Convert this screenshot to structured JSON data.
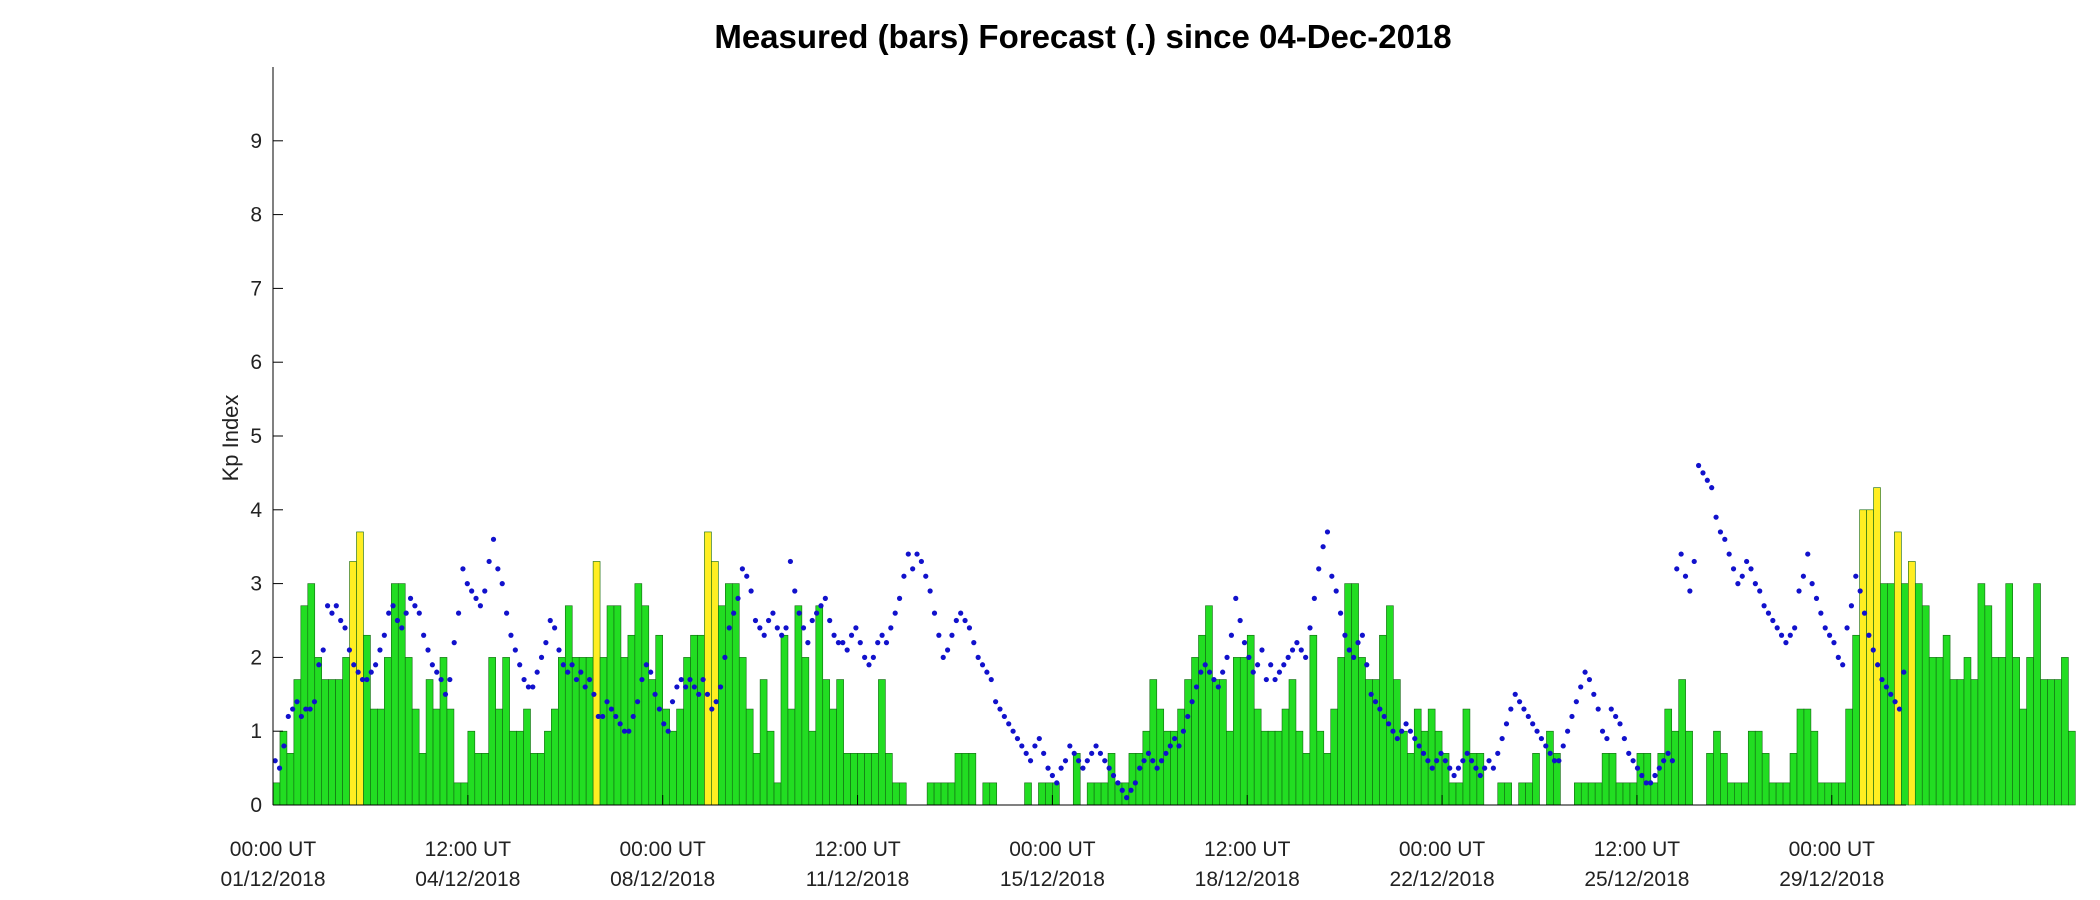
{
  "chart_data": {
    "type": "bar",
    "title": "Measured (bars) Forecast (.) since 04-Dec-2018",
    "ylabel": "Kp Index",
    "xlabel": "",
    "ylim": [
      0,
      10
    ],
    "yticks": [
      0,
      1,
      2,
      3,
      4,
      5,
      6,
      7,
      8,
      9
    ],
    "x_range_hours": [
      0,
      704
    ],
    "x_ticks": [
      {
        "hour": 0,
        "time": "00:00 UT",
        "date": "01/12/2018"
      },
      {
        "hour": 84,
        "time": "12:00 UT",
        "date": "04/12/2018"
      },
      {
        "hour": 168,
        "time": "00:00 UT",
        "date": "08/12/2018"
      },
      {
        "hour": 252,
        "time": "12:00 UT",
        "date": "11/12/2018"
      },
      {
        "hour": 336,
        "time": "00:00 UT",
        "date": "15/12/2018"
      },
      {
        "hour": 420,
        "time": "12:00 UT",
        "date": "18/12/2018"
      },
      {
        "hour": 504,
        "time": "00:00 UT",
        "date": "22/12/2018"
      },
      {
        "hour": 588,
        "time": "12:00 UT",
        "date": "25/12/2018"
      },
      {
        "hour": 672,
        "time": "00:00 UT",
        "date": "29/12/2018"
      }
    ],
    "colors": {
      "bar_low": "#22dd22",
      "bar_high": "#ffee22",
      "bar_edge": "#116611",
      "forecast": "#1111cc",
      "axis": "#000000"
    },
    "measured": [
      0.3,
      1.0,
      0.7,
      1.7,
      2.7,
      3.0,
      2.0,
      1.7,
      1.7,
      1.7,
      2.0,
      3.3,
      3.7,
      2.3,
      1.3,
      1.3,
      2.0,
      3.0,
      3.0,
      2.0,
      1.3,
      0.7,
      1.7,
      1.3,
      2.0,
      1.3,
      0.3,
      0.3,
      1.0,
      0.7,
      0.7,
      2.0,
      1.3,
      2.0,
      1.0,
      1.0,
      1.3,
      0.7,
      0.7,
      1.0,
      1.3,
      2.0,
      2.7,
      2.0,
      2.0,
      2.0,
      3.3,
      2.0,
      2.7,
      2.7,
      2.0,
      2.3,
      3.0,
      2.7,
      1.7,
      2.3,
      1.3,
      1.0,
      1.3,
      2.0,
      2.3,
      2.3,
      3.7,
      3.3,
      2.7,
      3.0,
      3.0,
      2.0,
      1.3,
      0.7,
      1.7,
      1.0,
      0.3,
      2.3,
      1.3,
      2.7,
      2.0,
      1.0,
      2.7,
      1.7,
      1.3,
      1.7,
      0.7,
      0.7,
      0.7,
      0.7,
      0.7,
      1.7,
      0.7,
      0.3,
      0.3,
      0.0,
      0.0,
      0.0,
      0.3,
      0.3,
      0.3,
      0.3,
      0.7,
      0.7,
      0.7,
      0.0,
      0.3,
      0.3,
      0.0,
      0.0,
      0.0,
      0.0,
      0.3,
      0.0,
      0.3,
      0.3,
      0.3,
      0.0,
      0.0,
      0.7,
      0.0,
      0.3,
      0.3,
      0.3,
      0.7,
      0.3,
      0.3,
      0.7,
      0.7,
      1.0,
      1.7,
      1.3,
      1.0,
      1.0,
      1.3,
      1.7,
      2.0,
      2.3,
      2.7,
      1.7,
      1.7,
      1.0,
      2.0,
      2.0,
      2.3,
      1.3,
      1.0,
      1.0,
      1.0,
      1.3,
      1.7,
      1.0,
      0.7,
      2.3,
      1.0,
      0.7,
      1.3,
      2.0,
      3.0,
      3.0,
      2.0,
      1.7,
      1.7,
      2.3,
      2.7,
      1.7,
      1.0,
      0.7,
      1.3,
      1.0,
      1.3,
      1.0,
      0.7,
      0.3,
      0.3,
      1.3,
      0.7,
      0.7,
      0.0,
      0.0,
      0.3,
      0.3,
      0.0,
      0.3,
      0.3,
      0.7,
      0.0,
      1.0,
      0.7,
      0.0,
      0.0,
      0.3,
      0.3,
      0.3,
      0.3,
      0.7,
      0.7,
      0.3,
      0.3,
      0.3,
      0.7,
      0.7,
      0.3,
      0.7,
      1.3,
      1.0,
      1.7,
      1.0,
      0.0,
      0.0,
      0.7,
      1.0,
      0.7,
      0.3,
      0.3,
      0.3,
      1.0,
      1.0,
      0.7,
      0.3,
      0.3,
      0.3,
      0.7,
      1.3,
      1.3,
      1.0,
      0.3,
      0.3,
      0.3,
      0.3,
      1.3,
      2.3,
      4.0,
      4.0,
      4.3,
      3.0,
      3.0,
      3.7,
      3.0,
      3.3,
      3.0,
      2.7,
      2.0,
      2.0,
      2.3,
      1.7,
      1.7,
      2.0,
      1.7,
      3.0,
      2.7,
      2.0,
      2.0,
      3.0,
      2.0,
      1.3,
      2.0,
      3.0,
      1.7,
      1.7,
      1.7,
      2.0,
      1.0
    ],
    "forecast": [
      0.6,
      0.5,
      0.8,
      1.2,
      1.3,
      1.4,
      1.2,
      1.3,
      1.3,
      1.4,
      1.9,
      2.1,
      2.7,
      2.6,
      2.7,
      2.5,
      2.4,
      2.1,
      1.9,
      1.8,
      1.7,
      1.7,
      1.8,
      1.9,
      2.1,
      2.3,
      2.6,
      2.7,
      2.5,
      2.4,
      2.6,
      2.8,
      2.7,
      2.6,
      2.3,
      2.1,
      1.9,
      1.8,
      1.7,
      1.5,
      1.7,
      2.2,
      2.6,
      3.2,
      3.0,
      2.9,
      2.8,
      2.7,
      2.9,
      3.3,
      3.6,
      3.2,
      3.0,
      2.6,
      2.3,
      2.1,
      1.9,
      1.7,
      1.6,
      1.6,
      1.8,
      2.0,
      2.2,
      2.5,
      2.4,
      2.1,
      1.9,
      1.8,
      1.9,
      1.7,
      1.8,
      1.6,
      1.7,
      1.5,
      1.2,
      1.2,
      1.4,
      1.3,
      1.2,
      1.1,
      1.0,
      1.0,
      1.2,
      1.4,
      1.7,
      1.9,
      1.8,
      1.5,
      1.3,
      1.1,
      1.0,
      1.4,
      1.6,
      1.7,
      1.6,
      1.7,
      1.6,
      1.5,
      1.7,
      1.5,
      1.3,
      1.4,
      1.6,
      2.0,
      2.4,
      2.6,
      2.8,
      3.2,
      3.1,
      2.9,
      2.5,
      2.4,
      2.3,
      2.5,
      2.6,
      2.4,
      2.3,
      2.4,
      3.3,
      2.9,
      2.6,
      2.4,
      2.2,
      2.5,
      2.6,
      2.7,
      2.8,
      2.5,
      2.3,
      2.2,
      2.2,
      2.1,
      2.3,
      2.4,
      2.2,
      2.0,
      1.9,
      2.0,
      2.2,
      2.3,
      2.2,
      2.4,
      2.6,
      2.8,
      3.1,
      3.4,
      3.2,
      3.4,
      3.3,
      3.1,
      2.9,
      2.6,
      2.3,
      2.0,
      2.1,
      2.3,
      2.5,
      2.6,
      2.5,
      2.4,
      2.2,
      2.0,
      1.9,
      1.8,
      1.7,
      1.4,
      1.3,
      1.2,
      1.1,
      1.0,
      0.9,
      0.8,
      0.7,
      0.6,
      0.8,
      0.9,
      0.7,
      0.5,
      0.4,
      0.3,
      0.5,
      0.6,
      0.8,
      0.7,
      0.6,
      0.5,
      0.6,
      0.7,
      0.8,
      0.7,
      0.6,
      0.5,
      0.4,
      0.3,
      0.2,
      0.1,
      0.2,
      0.3,
      0.5,
      0.6,
      0.7,
      0.6,
      0.5,
      0.6,
      0.7,
      0.8,
      0.9,
      0.8,
      1.0,
      1.2,
      1.4,
      1.6,
      1.8,
      1.9,
      1.8,
      1.7,
      1.6,
      1.8,
      2.0,
      2.3,
      2.8,
      2.5,
      2.2,
      2.0,
      1.8,
      1.9,
      2.1,
      1.7,
      1.9,
      1.7,
      1.8,
      1.9,
      2.0,
      2.1,
      2.2,
      2.1,
      2.0,
      2.4,
      2.8,
      3.2,
      3.5,
      3.7,
      3.1,
      2.9,
      2.6,
      2.3,
      2.1,
      2.0,
      2.2,
      2.3,
      1.9,
      1.5,
      1.4,
      1.3,
      1.2,
      1.1,
      1.0,
      0.9,
      1.0,
      1.1,
      1.0,
      0.9,
      0.8,
      0.7,
      0.6,
      0.5,
      0.6,
      0.7,
      0.6,
      0.5,
      0.4,
      0.5,
      0.6,
      0.7,
      0.6,
      0.5,
      0.4,
      0.5,
      0.6,
      0.5,
      0.7,
      0.9,
      1.1,
      1.3,
      1.5,
      1.4,
      1.3,
      1.2,
      1.1,
      1.0,
      0.9,
      0.8,
      0.7,
      0.6,
      0.6,
      0.8,
      1.0,
      1.2,
      1.4,
      1.6,
      1.8,
      1.7,
      1.5,
      1.3,
      1.0,
      0.9,
      1.3,
      1.2,
      1.1,
      0.9,
      0.7,
      0.6,
      0.5,
      0.4,
      0.3,
      0.3,
      0.4,
      0.5,
      0.6,
      0.7,
      0.6,
      3.2,
      3.4,
      3.1,
      2.9,
      3.3,
      4.6,
      4.5,
      4.4,
      4.3,
      3.9,
      3.7,
      3.6,
      3.4,
      3.2,
      3.0,
      3.1,
      3.3,
      3.2,
      3.0,
      2.9,
      2.7,
      2.6,
      2.5,
      2.4,
      2.3,
      2.2,
      2.3,
      2.4,
      2.9,
      3.1,
      3.4,
      3.0,
      2.8,
      2.6,
      2.4,
      2.3,
      2.2,
      2.0,
      1.9,
      2.4,
      2.7,
      3.1,
      2.9,
      2.6,
      2.3,
      2.1,
      1.9,
      1.7,
      1.6,
      1.5,
      1.4,
      1.3,
      1.8
    ]
  }
}
